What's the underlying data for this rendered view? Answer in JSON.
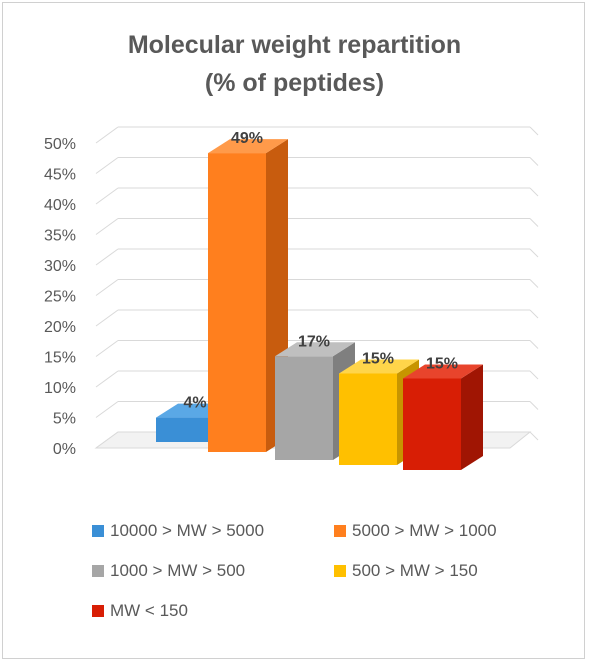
{
  "chart_data": {
    "type": "bar",
    "title_line1": "Molecular weight repartition",
    "title_line2": "(% of peptides)",
    "categories": [
      "10000 > MW > 5000",
      "5000 > MW > 1000",
      "1000 > MW > 500",
      "500 > MW > 150",
      "MW < 150"
    ],
    "values": [
      4,
      49,
      17,
      15,
      15
    ],
    "data_labels": [
      "4%",
      "49%",
      "17%",
      "15%",
      "15%"
    ],
    "colors": [
      "#3a8fd6",
      "#ff7f1e",
      "#a6a6a6",
      "#ffc000",
      "#d81e05"
    ],
    "side_colors": [
      "#2a6fa8",
      "#c85c0e",
      "#7f7f7f",
      "#c79500",
      "#a01503"
    ],
    "top_colors": [
      "#5aa8e6",
      "#ff9a4a",
      "#bfbfbf",
      "#ffd54a",
      "#e8442c"
    ],
    "y_ticks": [
      "0%",
      "5%",
      "10%",
      "15%",
      "20%",
      "25%",
      "30%",
      "35%",
      "40%",
      "45%",
      "50%"
    ],
    "ylim": [
      0,
      50
    ],
    "grid": true,
    "legend_position": "bottom",
    "style": "3d-column"
  }
}
